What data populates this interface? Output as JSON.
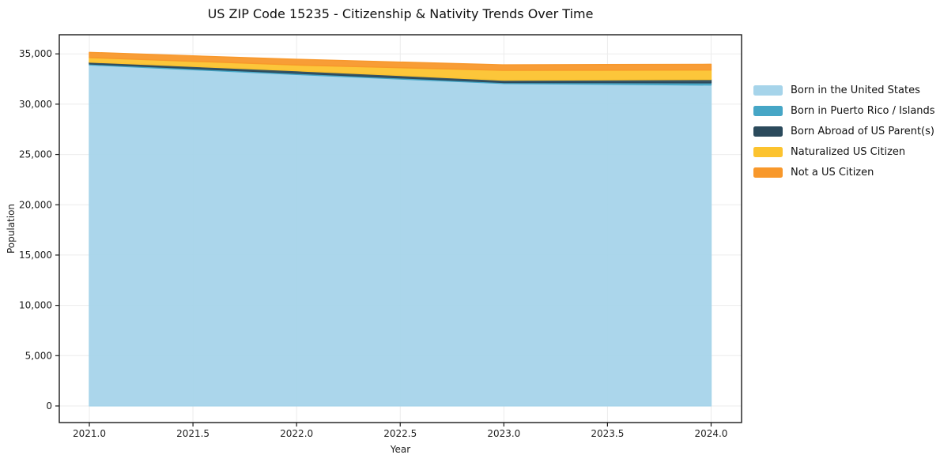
{
  "title": "US ZIP Code 15235 - Citizenship & Nativity Trends Over Time",
  "chart_data": {
    "type": "area",
    "stacked": true,
    "title": "US ZIP Code 15235 - Citizenship & Nativity Trends Over Time",
    "xlabel": "Year",
    "ylabel": "Population",
    "x": [
      2021,
      2022,
      2023,
      2024
    ],
    "series": [
      {
        "name": "Born in the United States",
        "color": "#A6D4EA",
        "values": [
          33900,
          32950,
          32050,
          31900
        ]
      },
      {
        "name": "Born in Puerto Rico / Islands",
        "color": "#46A6C6",
        "values": [
          100,
          120,
          100,
          220
        ]
      },
      {
        "name": "Born Abroad of US Parent(s)",
        "color": "#2B4A5C",
        "values": [
          180,
          250,
          230,
          330
        ]
      },
      {
        "name": "Naturalized US Citizen",
        "color": "#FCC32F",
        "values": [
          450,
          570,
          980,
          940
        ]
      },
      {
        "name": "Not a US Citizen",
        "color": "#F8982B",
        "values": [
          520,
          570,
          550,
          575
        ]
      }
    ],
    "stack_totals": [
      35150,
      34460,
      33910,
      33965
    ],
    "xlim": [
      2020.855,
      2024.147
    ],
    "ylim": [
      -1650,
      36900
    ],
    "xticks": {
      "values": [
        2021.0,
        2021.5,
        2022.0,
        2022.5,
        2023.0,
        2023.5,
        2024.0
      ],
      "labels": [
        "2021.0",
        "2021.5",
        "2022.0",
        "2022.5",
        "2023.0",
        "2023.5",
        "2024.0"
      ]
    },
    "yticks": {
      "values": [
        0,
        5000,
        10000,
        15000,
        20000,
        25000,
        30000,
        35000
      ],
      "labels": [
        "0",
        "5,000",
        "10,000",
        "15,000",
        "20,000",
        "25,000",
        "30,000",
        "35,000"
      ]
    },
    "grid": true,
    "legend_position": "right",
    "colors": {
      "spine": "#1a1a1a",
      "grid": "#ebebeb",
      "tick_text": "#222222"
    }
  }
}
